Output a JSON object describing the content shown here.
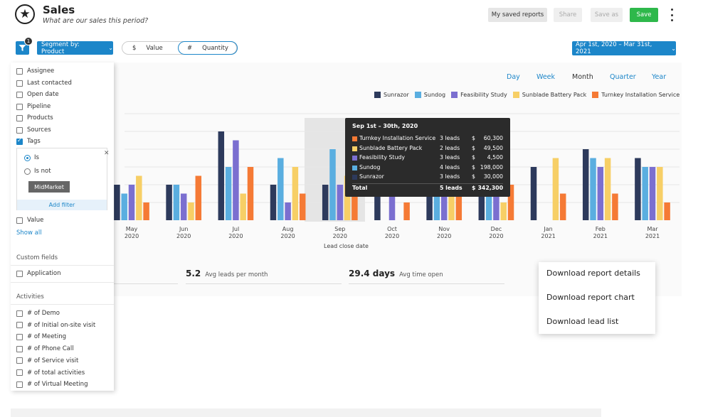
{
  "header": {
    "title": "Sales",
    "subtitle": "What are our sales this period?",
    "buttons": {
      "saved_reports": "My saved reports",
      "share": "Share",
      "save_as": "Save as",
      "save": "Save"
    }
  },
  "toolbar": {
    "filter_badge": "1",
    "segment_label": "Segment by: Product",
    "toggle_value_symbol": "$",
    "toggle_value_label": "Value",
    "toggle_qty_symbol": "#",
    "toggle_qty_label": "Quantity",
    "date_range": "Apr 1st, 2020 – Mar 31st, 2021"
  },
  "periods": [
    "Day",
    "Week",
    "Month",
    "Quarter",
    "Year"
  ],
  "active_period": "Month",
  "chart_data": {
    "type": "bar",
    "xlabel": "Lead close date",
    "categories": [
      "May 2020",
      "Jun 2020",
      "Jul 2020",
      "Aug 2020",
      "Sep 2020",
      "Oct 2020",
      "Nov 2020",
      "Dec 2020",
      "Jan 2021",
      "Feb 2021",
      "Mar 2021"
    ],
    "category_lines": [
      [
        "May",
        "2020"
      ],
      [
        "Jun",
        "2020"
      ],
      [
        "Jul",
        "2020"
      ],
      [
        "Aug",
        "2020"
      ],
      [
        "Sep",
        "2020"
      ],
      [
        "Oct",
        "2020"
      ],
      [
        "Nov",
        "2020"
      ],
      [
        "Dec",
        "2020"
      ],
      [
        "Jan",
        "2021"
      ],
      [
        "Feb",
        "2021"
      ],
      [
        "Mar",
        "2021"
      ]
    ],
    "ylim": [
      0,
      6
    ],
    "grid": true,
    "legend_position": "top-right",
    "series": [
      {
        "name": "Sunrazor",
        "color": "#2d3a5c",
        "values": [
          2,
          2,
          5,
          2,
          2,
          2,
          2,
          2,
          3,
          4,
          3.5
        ]
      },
      {
        "name": "Sundog",
        "color": "#5aaee0",
        "values": [
          1.5,
          2,
          3,
          3.5,
          4,
          0,
          3,
          3,
          0,
          3.5,
          3
        ]
      },
      {
        "name": "Feasibility Study",
        "color": "#7b6fd0",
        "values": [
          2,
          1.5,
          4.5,
          1,
          2,
          2,
          3.5,
          3,
          0,
          3,
          3
        ]
      },
      {
        "name": "Sunblade Battery Pack",
        "color": "#f7cf66",
        "values": [
          2.5,
          1,
          1.5,
          3,
          2.5,
          0,
          2.5,
          1,
          3.5,
          3.5,
          3
        ]
      },
      {
        "name": "Turnkey Installation Service",
        "color": "#f57a35",
        "values": [
          1,
          2.5,
          3,
          1.5,
          1.5,
          1,
          2,
          2,
          1.5,
          1.5,
          1
        ]
      }
    ]
  },
  "tooltip": {
    "title": "Sep 1st – 30th, 2020",
    "rows": [
      {
        "name": "Turnkey Installation Service",
        "leads": "3 leads",
        "currency": "$",
        "amount": "60,300",
        "color": "#f57a35"
      },
      {
        "name": "Sunblade Battery Pack",
        "leads": "2 leads",
        "currency": "$",
        "amount": "49,500",
        "color": "#f7cf66"
      },
      {
        "name": "Feasibility Study",
        "leads": "3 leads",
        "currency": "$",
        "amount": "4,500",
        "color": "#7b6fd0"
      },
      {
        "name": "Sundog",
        "leads": "4 leads",
        "currency": "$",
        "amount": "198,000",
        "color": "#5aaee0"
      },
      {
        "name": "Sunrazor",
        "leads": "3 leads",
        "currency": "$",
        "amount": "30,000",
        "color": "#2d3a5c"
      }
    ],
    "total": {
      "name": "Total",
      "leads": "5 leads",
      "currency": "$",
      "amount": "342,300"
    }
  },
  "stats": [
    {
      "value": "5.2",
      "label": "Avg leads per month"
    },
    {
      "value": "29.4 days",
      "label": "Avg time open"
    }
  ],
  "filters": {
    "fields": [
      {
        "label": "Assignee",
        "checked": false
      },
      {
        "label": "Last contacted",
        "checked": false
      },
      {
        "label": "Open date",
        "checked": false
      },
      {
        "label": "Pipeline",
        "checked": false
      },
      {
        "label": "Products",
        "checked": false
      },
      {
        "label": "Sources",
        "checked": false
      },
      {
        "label": "Tags",
        "checked": true
      }
    ],
    "tag_options": {
      "is": "Is",
      "is_not": "Is not"
    },
    "tag_chip": "MidMarket",
    "add_filter": "Add filter",
    "value_field": "Value",
    "show_all": "Show all",
    "custom_fields_heading": "Custom fields",
    "custom_fields": [
      "Application"
    ],
    "activities_heading": "Activities",
    "activities": [
      "# of Demo",
      "# of Initial on-site visit",
      "# of Meeting",
      "# of Phone Call",
      "# of Service visit",
      "# of total activities",
      "# of Virtual Meeting"
    ]
  },
  "download_menu": [
    "Download report details",
    "Download report chart",
    "Download lead list"
  ]
}
